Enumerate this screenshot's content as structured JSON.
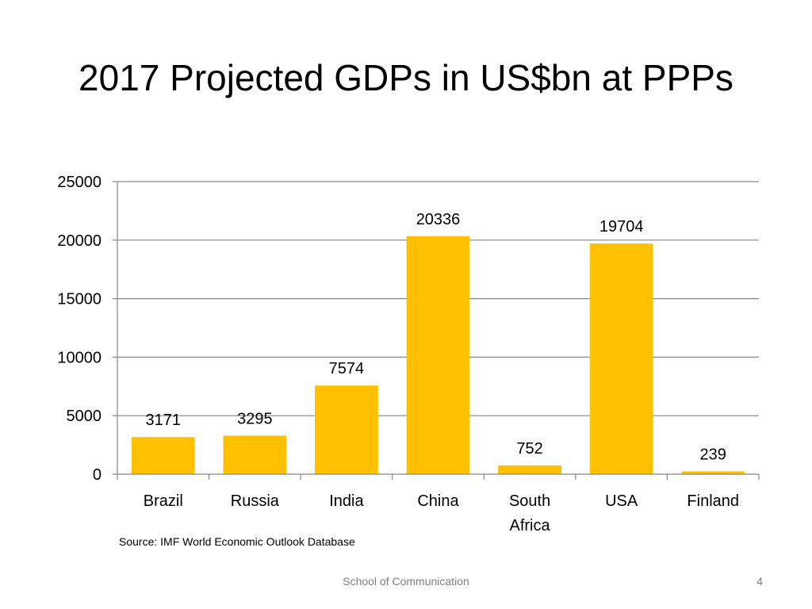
{
  "slide": {
    "title": "2017 Projected GDPs in US$bn at PPPs",
    "source": "Source: IMF  World Economic Outlook Database",
    "footer": "School of Communication",
    "page_number": "4"
  },
  "chart_data": {
    "type": "bar",
    "title": "",
    "xlabel": "",
    "ylabel": "",
    "categories": [
      [
        "Brazil"
      ],
      [
        "Russia"
      ],
      [
        "India"
      ],
      [
        "China"
      ],
      [
        "South",
        "Africa"
      ],
      [
        "USA"
      ],
      [
        "Finland"
      ]
    ],
    "values": [
      3171,
      3295,
      7574,
      20336,
      752,
      19704,
      239
    ],
    "data_labels": [
      "3171",
      "3295",
      "7574",
      "20336",
      "752",
      "19704",
      "239"
    ],
    "ylim": [
      0,
      25000
    ],
    "yticks": [
      "0",
      "5000",
      "10000",
      "15000",
      "20000",
      "25000"
    ],
    "grid": true,
    "legend": "none",
    "bar_color": "#FFC000",
    "grid_color": "#868686"
  }
}
